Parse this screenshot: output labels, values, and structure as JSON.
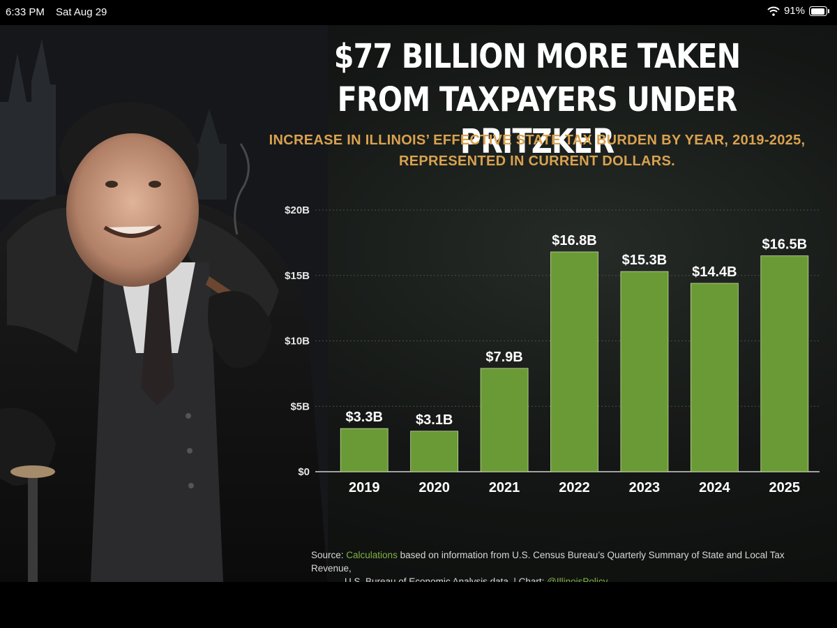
{
  "status_bar": {
    "time": "6:33 PM",
    "date": "Sat Aug 29",
    "battery": "91%"
  },
  "headline": {
    "line1": "$77 BILLION MORE TAKEN",
    "line2": "FROM TAXPAYERS UNDER PRITZKER"
  },
  "subtitle": {
    "line1": "INCREASE IN ILLINOIS’ EFFECTIVE STATE TAX BURDEN BY YEAR, 2019-2025,",
    "line2": "REPRESENTED IN CURRENT DOLLARS."
  },
  "chart_data": {
    "type": "bar",
    "categories": [
      "2019",
      "2020",
      "2021",
      "2022",
      "2023",
      "2024",
      "2025"
    ],
    "values": [
      3.3,
      3.1,
      7.9,
      16.8,
      15.3,
      14.4,
      16.5
    ],
    "data_labels": [
      "$3.3B",
      "$3.1B",
      "$7.9B",
      "$16.8B",
      "$15.3B",
      "$14.4B",
      "$16.5B"
    ],
    "yticks": [
      0,
      5,
      10,
      15,
      20
    ],
    "ytick_labels": [
      "$0",
      "$5B",
      "$10B",
      "$15B",
      "$20B"
    ],
    "ylim": [
      0,
      20
    ],
    "grid": true,
    "bar_color": "#6a9a35"
  },
  "source": {
    "prefix": "Source: ",
    "highlight": "Calculations",
    "line1_rest": " based on information from U.S. Census Bureau’s Quarterly Summary of State and Local Tax Revenue,",
    "line2": "U.S. Bureau of Economic Analysis data. | Chart: ",
    "handle": "@IllinoisPolicy"
  },
  "colors": {
    "accent": "#d9a24f",
    "green": "#7fb346",
    "text": "#ffffff"
  }
}
